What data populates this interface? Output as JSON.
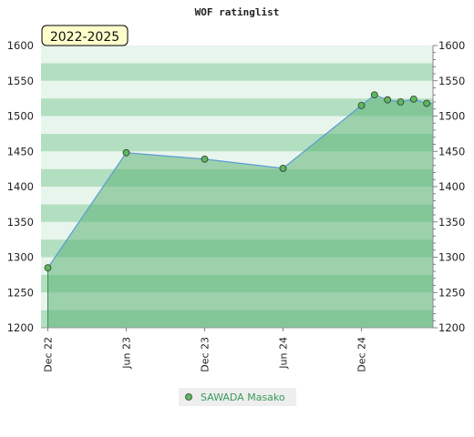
{
  "chart_data": {
    "type": "area",
    "title": "WOF ratinglist",
    "period_label": "2022-2025",
    "ylim": [
      1200,
      1600
    ],
    "y_ticks": [
      1200,
      1250,
      1300,
      1350,
      1400,
      1450,
      1500,
      1550,
      1600
    ],
    "x_ticks": [
      "Dec 22",
      "Jun 23",
      "Dec 23",
      "Jun 24",
      "Dec 24"
    ],
    "series": [
      {
        "name": "SAWADA Masako",
        "x": [
          "Dec 22",
          "Jun 23",
          "Dec 23",
          "Jun 24",
          "Dec 24",
          "Jan 25",
          "Feb 25",
          "Mar 25",
          "Apr 25",
          "May 25"
        ],
        "values": [
          1285,
          1448,
          1439,
          1426,
          1515,
          1530,
          1523,
          1520,
          1524,
          1518
        ]
      }
    ],
    "grid": true,
    "legend_position": "bottom",
    "colors": {
      "line": "#5b9bd5",
      "fill": "#5cb378",
      "marker": "#5cb85c",
      "legend_text": "#3a9a5a",
      "band_dark": "#b2dfc0",
      "band_light": "#e8f5ec",
      "period_box": "#ffffcc"
    }
  }
}
